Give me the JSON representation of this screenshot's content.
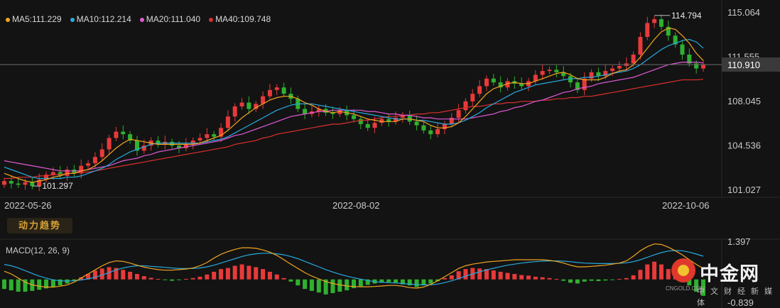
{
  "legend": {
    "ma5": "MA5:111.229",
    "ma10": "MA10:112.214",
    "ma20": "MA20:111.040",
    "ma40": "MA40:109.748"
  },
  "indicator_tab_label": "动力趋势",
  "macd_title": "MACD(12, 26, 9)",
  "colors": {
    "background": "#131313",
    "up": "#e83a3a",
    "down": "#2fb12f",
    "ma5": "#f2a520",
    "ma10": "#28a9e0",
    "ma20": "#e05ad6",
    "ma40": "#d9302c",
    "dif": "#f2a520",
    "dea": "#28a9e0"
  },
  "watermark": {
    "name": "中金网",
    "site": "CNGOLD.COM",
    "tagline": "中文财经新媒体"
  },
  "chart_data": [
    {
      "type": "candlestick",
      "x_labels": [
        "2022-05-26",
        "2022-08-02",
        "2022-10-06"
      ],
      "y_ticks": [
        "115.064",
        "111.555",
        "108.045",
        "104.536",
        "101.027"
      ],
      "y_range": [
        101.027,
        115.064
      ],
      "current_price": "110.910",
      "high_label": "114.794",
      "low_label": "101.297",
      "grid": false,
      "closes": [
        101.7,
        101.5,
        101.4,
        101.6,
        101.297,
        101.8,
        102.2,
        102.4,
        102.1,
        102.6,
        102.3,
        102.9,
        103.1,
        103.6,
        104.2,
        105.1,
        105.6,
        105.4,
        104.9,
        104.1,
        104.5,
        104.9,
        104.6,
        104.8,
        104.5,
        104.3,
        104.6,
        104.9,
        105.1,
        105.4,
        105.2,
        105.9,
        106.8,
        107.6,
        107.9,
        107.4,
        107.8,
        108.4,
        108.9,
        109.1,
        108.6,
        108.2,
        107.4,
        107.0,
        107.2,
        107.4,
        107.1,
        107.0,
        107.3,
        106.9,
        106.6,
        106.2,
        105.9,
        106.3,
        106.6,
        106.4,
        106.7,
        106.9,
        106.4,
        106.1,
        105.7,
        105.4,
        105.8,
        106.2,
        106.7,
        107.3,
        108.0,
        108.6,
        109.2,
        109.8,
        109.5,
        109.1,
        109.6,
        109.4,
        109.2,
        109.6,
        110.1,
        110.4,
        110.5,
        110.3,
        110.0,
        109.5,
        108.9,
        109.8,
        110.3,
        110.0,
        110.4,
        110.6,
        110.8,
        111.0,
        111.7,
        113.1,
        114.2,
        114.5,
        113.9,
        113.2,
        112.5,
        111.7,
        111.0,
        110.6,
        110.91
      ],
      "ma5": [
        102.3,
        102.1,
        101.9,
        101.7,
        101.6,
        101.7,
        101.8,
        102.0,
        102.1,
        102.3,
        102.3,
        102.5,
        102.6,
        102.9,
        103.3,
        103.8,
        104.3,
        104.7,
        105.0,
        104.9,
        104.8,
        104.7,
        104.6,
        104.6,
        104.6,
        104.6,
        104.6,
        104.6,
        104.7,
        104.9,
        105.1,
        105.3,
        105.7,
        106.2,
        106.7,
        107.1,
        107.5,
        107.8,
        108.1,
        108.3,
        108.4,
        108.4,
        108.2,
        107.9,
        107.7,
        107.4,
        107.2,
        107.1,
        107.2,
        107.1,
        107.0,
        106.8,
        106.6,
        106.5,
        106.4,
        106.4,
        106.4,
        106.6,
        106.6,
        106.5,
        106.4,
        106.1,
        105.9,
        105.9,
        106.0,
        106.3,
        106.8,
        107.4,
        108.0,
        108.6,
        109.0,
        109.2,
        109.4,
        109.5,
        109.4,
        109.4,
        109.6,
        109.8,
        110.0,
        110.2,
        110.3,
        110.1,
        109.8,
        109.7,
        109.7,
        109.7,
        109.9,
        110.2,
        110.4,
        110.5,
        110.9,
        111.5,
        112.2,
        112.9,
        113.5,
        113.8,
        113.7,
        113.2,
        112.6,
        111.8,
        111.229
      ],
      "ma10": [
        102.8,
        102.6,
        102.4,
        102.2,
        102.0,
        101.9,
        101.9,
        101.9,
        101.9,
        102.0,
        102.0,
        102.1,
        102.3,
        102.5,
        102.7,
        103.0,
        103.4,
        103.7,
        104.0,
        104.2,
        104.4,
        104.6,
        104.7,
        104.7,
        104.7,
        104.7,
        104.7,
        104.7,
        104.7,
        104.8,
        104.9,
        105.0,
        105.2,
        105.5,
        105.8,
        106.1,
        106.4,
        106.7,
        107.0,
        107.3,
        107.5,
        107.7,
        107.8,
        107.8,
        107.8,
        107.7,
        107.6,
        107.5,
        107.4,
        107.3,
        107.2,
        107.1,
        107.0,
        106.9,
        106.8,
        106.7,
        106.6,
        106.6,
        106.6,
        106.5,
        106.5,
        106.4,
        106.3,
        106.2,
        106.2,
        106.3,
        106.5,
        106.8,
        107.1,
        107.5,
        107.8,
        108.1,
        108.4,
        108.7,
        108.9,
        109.1,
        109.3,
        109.4,
        109.5,
        109.6,
        109.7,
        109.8,
        109.8,
        109.9,
        109.9,
        110.0,
        110.1,
        110.2,
        110.3,
        110.4,
        110.6,
        110.9,
        111.3,
        111.7,
        112.1,
        112.4,
        112.6,
        112.8,
        112.9,
        112.7,
        112.214
      ],
      "ma20": [
        103.3,
        103.2,
        103.1,
        103.0,
        102.9,
        102.8,
        102.7,
        102.6,
        102.5,
        102.5,
        102.5,
        102.5,
        102.6,
        102.7,
        102.8,
        102.9,
        103.1,
        103.3,
        103.4,
        103.5,
        103.7,
        103.8,
        104.0,
        104.1,
        104.2,
        104.3,
        104.4,
        104.5,
        104.6,
        104.7,
        104.8,
        104.9,
        105.1,
        105.3,
        105.4,
        105.6,
        105.8,
        106.0,
        106.2,
        106.4,
        106.6,
        106.8,
        106.9,
        107.0,
        107.1,
        107.2,
        107.2,
        107.3,
        107.3,
        107.3,
        107.3,
        107.3,
        107.2,
        107.2,
        107.1,
        107.0,
        107.0,
        106.9,
        106.9,
        106.8,
        106.7,
        106.7,
        106.6,
        106.6,
        106.6,
        106.6,
        106.6,
        106.7,
        106.8,
        106.9,
        107.0,
        107.2,
        107.3,
        107.5,
        107.6,
        107.8,
        108.0,
        108.1,
        108.3,
        108.5,
        108.7,
        108.8,
        109.0,
        109.1,
        109.2,
        109.4,
        109.5,
        109.6,
        109.7,
        109.8,
        109.9,
        110.1,
        110.3,
        110.5,
        110.7,
        110.9,
        111.0,
        111.1,
        111.1,
        111.1,
        111.04
      ],
      "ma40": [
        101.9,
        101.9,
        102.0,
        102.0,
        102.0,
        102.1,
        102.1,
        102.2,
        102.2,
        102.3,
        102.3,
        102.4,
        102.4,
        102.5,
        102.6,
        102.7,
        102.8,
        102.9,
        103.0,
        103.1,
        103.2,
        103.3,
        103.4,
        103.5,
        103.6,
        103.7,
        103.8,
        103.9,
        104.0,
        104.1,
        104.2,
        104.3,
        104.4,
        104.6,
        104.7,
        104.8,
        104.9,
        105.1,
        105.2,
        105.4,
        105.5,
        105.6,
        105.7,
        105.8,
        105.9,
        106.0,
        106.1,
        106.2,
        106.2,
        106.3,
        106.4,
        106.5,
        106.5,
        106.6,
        106.7,
        106.8,
        106.8,
        106.9,
        106.9,
        107.0,
        107.0,
        107.1,
        107.1,
        107.2,
        107.3,
        107.4,
        107.5,
        107.6,
        107.6,
        107.7,
        107.8,
        107.8,
        107.9,
        107.9,
        108.0,
        108.0,
        108.0,
        108.1,
        108.1,
        108.2,
        108.2,
        108.3,
        108.3,
        108.4,
        108.4,
        108.5,
        108.6,
        108.7,
        108.8,
        108.9,
        109.0,
        109.1,
        109.2,
        109.3,
        109.4,
        109.5,
        109.6,
        109.7,
        109.7,
        109.7,
        109.748
      ]
    },
    {
      "type": "macd",
      "title": "MACD(12, 26, 9)",
      "y_ticks": [
        "1.397",
        "-0.839"
      ],
      "y_range": [
        -0.839,
        1.397
      ],
      "hist": [
        -0.35,
        -0.4,
        -0.45,
        -0.45,
        -0.42,
        -0.38,
        -0.33,
        -0.28,
        -0.22,
        -0.15,
        -0.05,
        0.08,
        0.2,
        0.32,
        0.4,
        0.45,
        0.42,
        0.35,
        0.28,
        0.2,
        0.12,
        0.06,
        0.02,
        -0.02,
        -0.05,
        -0.02,
        0.02,
        0.05,
        0.1,
        0.18,
        0.28,
        0.38,
        0.42,
        0.5,
        0.55,
        0.5,
        0.45,
        0.38,
        0.28,
        0.18,
        0.05,
        -0.08,
        -0.22,
        -0.35,
        -0.42,
        -0.48,
        -0.55,
        -0.5,
        -0.45,
        -0.4,
        -0.32,
        -0.25,
        -0.2,
        -0.15,
        -0.12,
        -0.1,
        -0.12,
        -0.18,
        -0.22,
        -0.28,
        -0.22,
        -0.15,
        -0.06,
        0.05,
        0.15,
        0.3,
        0.38,
        0.42,
        0.4,
        0.38,
        0.33,
        0.28,
        0.24,
        0.2,
        0.16,
        0.14,
        0.1,
        0.08,
        0.05,
        0.02,
        -0.05,
        -0.12,
        -0.15,
        -0.08,
        -0.05,
        -0.06,
        -0.04,
        -0.02,
        0.02,
        0.05,
        0.15,
        0.35,
        0.55,
        0.65,
        0.55,
        0.38,
        0.2,
        0.0,
        -0.22,
        -0.45,
        -0.6
      ],
      "dif": [
        0.3,
        0.2,
        0.05,
        -0.1,
        -0.2,
        -0.25,
        -0.28,
        -0.28,
        -0.25,
        -0.2,
        -0.1,
        0.05,
        0.2,
        0.35,
        0.5,
        0.62,
        0.68,
        0.66,
        0.6,
        0.52,
        0.45,
        0.4,
        0.36,
        0.34,
        0.34,
        0.36,
        0.38,
        0.42,
        0.5,
        0.62,
        0.78,
        0.92,
        1.02,
        1.1,
        1.16,
        1.16,
        1.14,
        1.08,
        1.0,
        0.88,
        0.72,
        0.56,
        0.4,
        0.25,
        0.12,
        0.02,
        -0.08,
        -0.15,
        -0.2,
        -0.24,
        -0.26,
        -0.27,
        -0.27,
        -0.26,
        -0.24,
        -0.22,
        -0.22,
        -0.25,
        -0.3,
        -0.32,
        -0.28,
        -0.18,
        -0.05,
        0.1,
        0.25,
        0.4,
        0.5,
        0.56,
        0.6,
        0.64,
        0.66,
        0.68,
        0.7,
        0.72,
        0.72,
        0.72,
        0.72,
        0.72,
        0.7,
        0.66,
        0.6,
        0.52,
        0.46,
        0.46,
        0.48,
        0.5,
        0.52,
        0.56,
        0.6,
        0.68,
        0.85,
        1.05,
        1.2,
        1.3,
        1.28,
        1.18,
        1.05,
        0.9,
        0.72,
        0.55,
        0.4
      ],
      "dea": [
        0.55,
        0.5,
        0.42,
        0.32,
        0.22,
        0.12,
        0.05,
        -0.02,
        -0.05,
        -0.06,
        -0.05,
        -0.02,
        0.02,
        0.08,
        0.16,
        0.25,
        0.35,
        0.42,
        0.47,
        0.5,
        0.5,
        0.48,
        0.46,
        0.44,
        0.42,
        0.4,
        0.4,
        0.4,
        0.42,
        0.46,
        0.52,
        0.6,
        0.68,
        0.76,
        0.84,
        0.9,
        0.94,
        0.96,
        0.96,
        0.94,
        0.9,
        0.84,
        0.76,
        0.66,
        0.56,
        0.46,
        0.36,
        0.27,
        0.19,
        0.12,
        0.06,
        0.01,
        -0.04,
        -0.08,
        -0.1,
        -0.12,
        -0.13,
        -0.15,
        -0.17,
        -0.19,
        -0.2,
        -0.2,
        -0.17,
        -0.12,
        -0.05,
        0.03,
        0.12,
        0.2,
        0.28,
        0.35,
        0.41,
        0.47,
        0.52,
        0.56,
        0.6,
        0.63,
        0.65,
        0.67,
        0.68,
        0.68,
        0.67,
        0.65,
        0.62,
        0.6,
        0.59,
        0.58,
        0.58,
        0.58,
        0.59,
        0.61,
        0.65,
        0.72,
        0.81,
        0.9,
        0.98,
        1.04,
        1.06,
        1.05,
        1.0,
        0.93,
        0.85
      ]
    }
  ]
}
